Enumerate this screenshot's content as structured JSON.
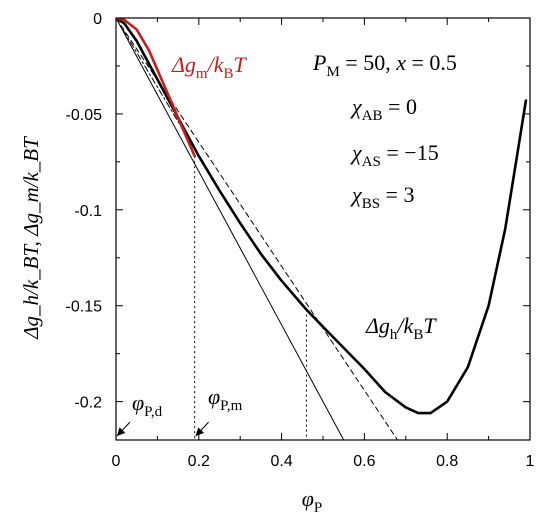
{
  "chart_data": {
    "type": "line",
    "xlim": [
      0,
      1
    ],
    "ylim": [
      -0.22,
      0
    ],
    "xticks": [
      0,
      0.2,
      0.4,
      0.6,
      0.8,
      1
    ],
    "xtick_labels": [
      "0",
      "0.2",
      "0.4",
      "0.6",
      "0.8",
      "1"
    ],
    "yticks": [
      0,
      -0.05,
      -0.1,
      -0.15,
      -0.2
    ],
    "ytick_labels": [
      "0",
      "-0.05",
      "-0.1",
      "-0.15",
      "-0.2"
    ],
    "xlabel": {
      "base": "φ",
      "sub": "P"
    },
    "ylabel": {
      "text": "Δg_h/k_BT,  Δg_m/k_BT"
    },
    "params": {
      "line1": {
        "sym": "P",
        "sub": "M",
        "rest": " = 50,  ",
        "sym2": "x",
        "rest2": " = 0.5"
      },
      "chi_ab": {
        "sym": "χ",
        "sub": "AB",
        "value": " = 0"
      },
      "chi_as": {
        "sym": "χ",
        "sub": "AS",
        "value": " = −15"
      },
      "chi_bs": {
        "sym": "χ",
        "sub": "BS",
        "value": " = 3"
      }
    },
    "series": [
      {
        "name": "Δg_h/k_BT",
        "color": "#000000",
        "style": "thick",
        "x": [
          0,
          0.02,
          0.05,
          0.08,
          0.1,
          0.13,
          0.16,
          0.2,
          0.25,
          0.3,
          0.35,
          0.4,
          0.46,
          0.5,
          0.55,
          0.6,
          0.65,
          0.7,
          0.73,
          0.76,
          0.8,
          0.85,
          0.9,
          0.94,
          0.97,
          0.99
        ],
        "y": [
          0,
          -0.0028,
          -0.012,
          -0.024,
          -0.032,
          -0.044,
          -0.056,
          -0.072,
          -0.09,
          -0.107,
          -0.123,
          -0.137,
          -0.152,
          -0.161,
          -0.172,
          -0.183,
          -0.195,
          -0.203,
          -0.206,
          -0.206,
          -0.2,
          -0.182,
          -0.15,
          -0.11,
          -0.07,
          -0.043
        ]
      },
      {
        "name": "Δg_m/k_BT",
        "color": "#cc1a1a",
        "style": "thick",
        "x": [
          0,
          0.02,
          0.05,
          0.08,
          0.1,
          0.12,
          0.14,
          0.16,
          0.18,
          0.19
        ],
        "y": [
          0,
          -0.001,
          -0.006,
          -0.017,
          -0.027,
          -0.037,
          -0.047,
          -0.057,
          -0.067,
          -0.072
        ]
      },
      {
        "name": "tangent-solid",
        "color": "#000000",
        "style": "thin",
        "x": [
          0,
          0.55
        ],
        "y": [
          0,
          -0.22
        ]
      },
      {
        "name": "tangent-dashed",
        "color": "#000000",
        "style": "dashed",
        "x": [
          0,
          0.68
        ],
        "y": [
          0,
          -0.22
        ]
      },
      {
        "name": "tangent-dotdash",
        "color": "#000000",
        "style": "dotdash",
        "x": [
          0,
          0.2
        ],
        "y": [
          0,
          -0.072
        ]
      }
    ],
    "vlines": [
      {
        "x": 0.19,
        "y_top": -0.072,
        "style": "dotted"
      },
      {
        "x": 0.46,
        "y_top": -0.152,
        "style": "dotted"
      }
    ],
    "annotations": {
      "dg_m": {
        "base": "Δg",
        "sub": "m",
        "mid": "/k",
        "sub2": "B",
        "end": "T",
        "color": "#cc1a1a"
      },
      "dg_h": {
        "base": "Δg",
        "sub": "h",
        "mid": "/k",
        "sub2": "B",
        "end": "T",
        "color": "#000000"
      },
      "phi_pd": {
        "base": "φ",
        "sub": "P,d",
        "arrow_x": 0
      },
      "phi_pm": {
        "base": "φ",
        "sub": "P,m",
        "arrow_x": 0.19
      }
    }
  }
}
